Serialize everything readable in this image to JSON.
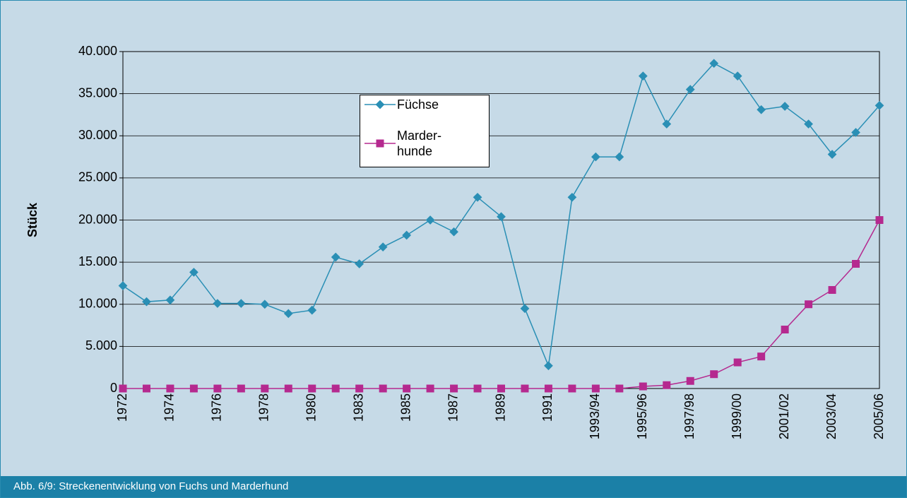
{
  "chart_data": {
    "type": "line",
    "caption": "Abb. 6/9: Streckenentwicklung von Fuchs und Marderhund",
    "y_label": "Stück",
    "categories": [
      "1972",
      null,
      "1974",
      null,
      "1976",
      null,
      "1978",
      null,
      "1980",
      null,
      "1983",
      null,
      "1985",
      null,
      "1987",
      null,
      "1989",
      null,
      "1991",
      null,
      "1993/94",
      null,
      "1995/96",
      null,
      "1997/98",
      null,
      "1999/00",
      null,
      "2001/02",
      null,
      "2003/04",
      null,
      "2005/06"
    ],
    "series": [
      {
        "name": "Füchse",
        "color": "#2a8fb5",
        "marker": "diamond",
        "values": [
          12200,
          10300,
          10500,
          13800,
          10100,
          10100,
          10000,
          8900,
          9300,
          15600,
          14800,
          16800,
          18200,
          20000,
          18600,
          22700,
          20400,
          9500,
          2700,
          22700,
          27500,
          27500,
          37100,
          31400,
          35500,
          38600,
          37100,
          33100,
          33500,
          31400,
          27800,
          30400,
          33600
        ]
      },
      {
        "name": "Marder-hunde",
        "color": "#b5298f",
        "marker": "square",
        "values": [
          0,
          0,
          0,
          0,
          0,
          0,
          0,
          0,
          0,
          0,
          0,
          0,
          0,
          0,
          0,
          0,
          0,
          0,
          0,
          0,
          0,
          0,
          250,
          400,
          900,
          1700,
          3100,
          3800,
          7000,
          10000,
          11700,
          14800,
          20000
        ]
      }
    ],
    "ylim": [
      0,
      40000
    ],
    "yticks": [
      0,
      {
        "value": 5000,
        "label": "5.000"
      },
      {
        "value": 10000,
        "label": "10.000"
      },
      {
        "value": 15000,
        "label": "15.000"
      },
      {
        "value": 20000,
        "label": "20.000"
      },
      {
        "value": 25000,
        "label": "25.000"
      },
      {
        "value": 30000,
        "label": "30.000"
      },
      {
        "value": 35000,
        "label": "35.000"
      },
      {
        "value": 40000,
        "label": "40.000"
      }
    ],
    "grid": true
  }
}
